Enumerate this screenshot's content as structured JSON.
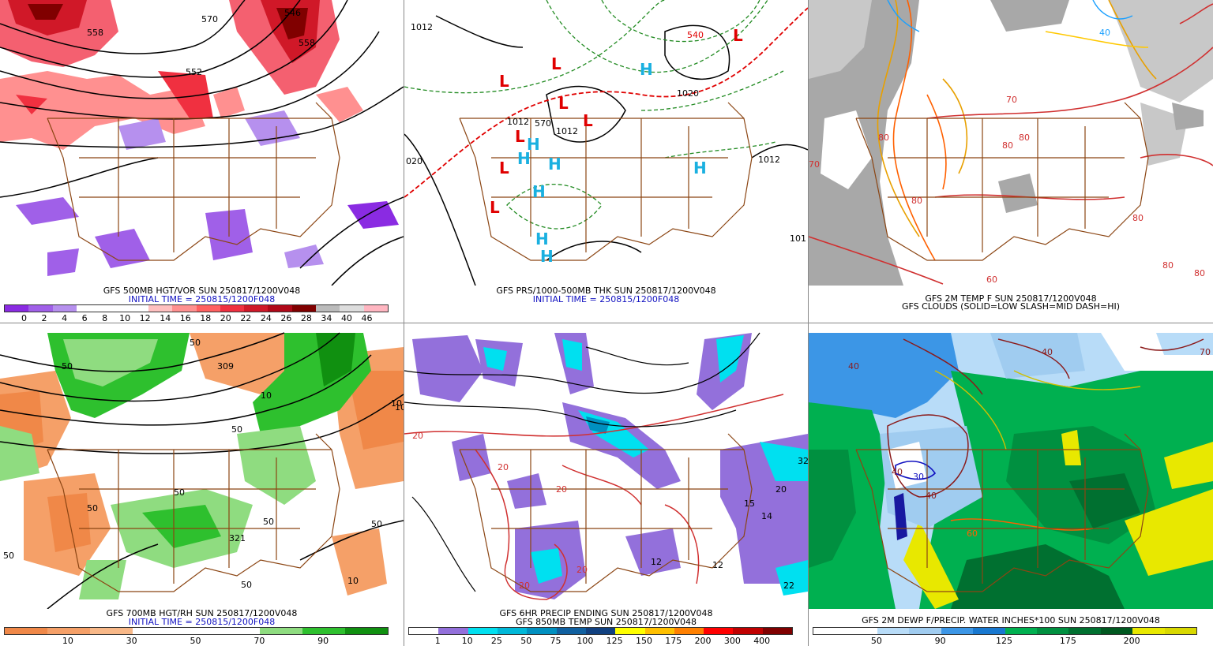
{
  "panels": [
    {
      "caption1": "GFS 500MB HGT/VOR SUN 250817/1200V048",
      "caption2": "INITIAL TIME = 250815/1200F048",
      "colorbar": [
        "#8a2be2",
        "#a060e8",
        "#b690ee",
        "#ffffff",
        "#ffffff",
        "#ffffff",
        "#ffc0c0",
        "#ff9090",
        "#ff6060",
        "#f03040",
        "#d01828",
        "#b00818",
        "#800000",
        "#bbbbbb",
        "#dddddd",
        "#ffb6c1"
      ],
      "ticks": [
        "0",
        "2",
        "4",
        "6",
        "8",
        "10",
        "12",
        "14",
        "16",
        "18",
        "20",
        "22",
        "24",
        "26",
        "28",
        "34",
        "40",
        "46"
      ],
      "labels": [
        "558",
        "570",
        "546",
        "558",
        "552"
      ]
    },
    {
      "caption1": "GFS PRS/1000-500MB THK SUN 250817/1200V048",
      "caption2": "INITIAL TIME = 250815/1200F048",
      "labels": [
        "1012",
        "1012",
        "1012",
        "1012",
        "020",
        "101",
        "540",
        "1020",
        "570"
      ],
      "highs": [
        "H",
        "H",
        "H",
        "H",
        "H",
        "H",
        "H",
        "H"
      ],
      "lows": [
        "L",
        "L",
        "L",
        "L",
        "L",
        "L",
        "L",
        "L"
      ]
    },
    {
      "caption1": "GFS 2M TEMP F SUN 250817/1200V048",
      "caption2": "GFS CLOUDS (SOLID=LOW SLASH=MID DASH=HI)",
      "labels": [
        "40",
        "70",
        "80",
        "80",
        "80",
        "80",
        "80",
        "80",
        "70",
        "60",
        "80"
      ]
    },
    {
      "caption1": "GFS 700MB HGT/RH SUN 250817/1200V048",
      "caption2": "INITIAL TIME = 250815/1200F048",
      "colorbar": [
        "#f08848",
        "#f5a068",
        "#f8b888",
        "#ffffff",
        "#ffffff",
        "#ffffff",
        "#8fdc80",
        "#2ec02e",
        "#109010"
      ],
      "ticks": [
        "10",
        "30",
        "50",
        "70",
        "90"
      ],
      "labels": [
        "50",
        "50",
        "10",
        "309",
        "10",
        "50",
        "50",
        "50",
        "50",
        "50",
        "50",
        "321",
        "10",
        "50",
        "10"
      ]
    },
    {
      "caption1": "GFS 6HR PRECIP ENDING SUN 250817/1200V048",
      "caption2": "GFS 850MB TEMP SUN 250817/1200V048",
      "colorbar": [
        "#ffffff",
        "#9370db",
        "#00e0f0",
        "#00b8d8",
        "#0090c0",
        "#1060a0",
        "#104080",
        "#ffff00",
        "#ffc000",
        "#ff8000",
        "#ff0000",
        "#c00000",
        "#800000"
      ],
      "ticks": [
        "1",
        "10",
        "25",
        "50",
        "75",
        "100",
        "125",
        "150",
        "175",
        "200",
        "300",
        "400"
      ],
      "labels": [
        "20",
        "20",
        "20",
        "20",
        "20",
        "12",
        "12",
        "15",
        "14",
        "20",
        "22",
        "32"
      ]
    },
    {
      "caption1": "GFS 2M DEWP F/PRECIP. WATER INCHES*100 SUN 250817/1200V048",
      "caption2": "",
      "colorbar": [
        "#ffffff",
        "#ffffff",
        "#b8dcf8",
        "#a0ccf0",
        "#3c96e6",
        "#1878d0",
        "#00b050",
        "#009040",
        "#007030",
        "#005820",
        "#e8e800",
        "#d8d800"
      ],
      "ticks": [
        "50",
        "90",
        "125",
        "175",
        "200"
      ],
      "labels": [
        "40",
        "40",
        "30",
        "40",
        "40",
        "70",
        "60"
      ]
    }
  ]
}
